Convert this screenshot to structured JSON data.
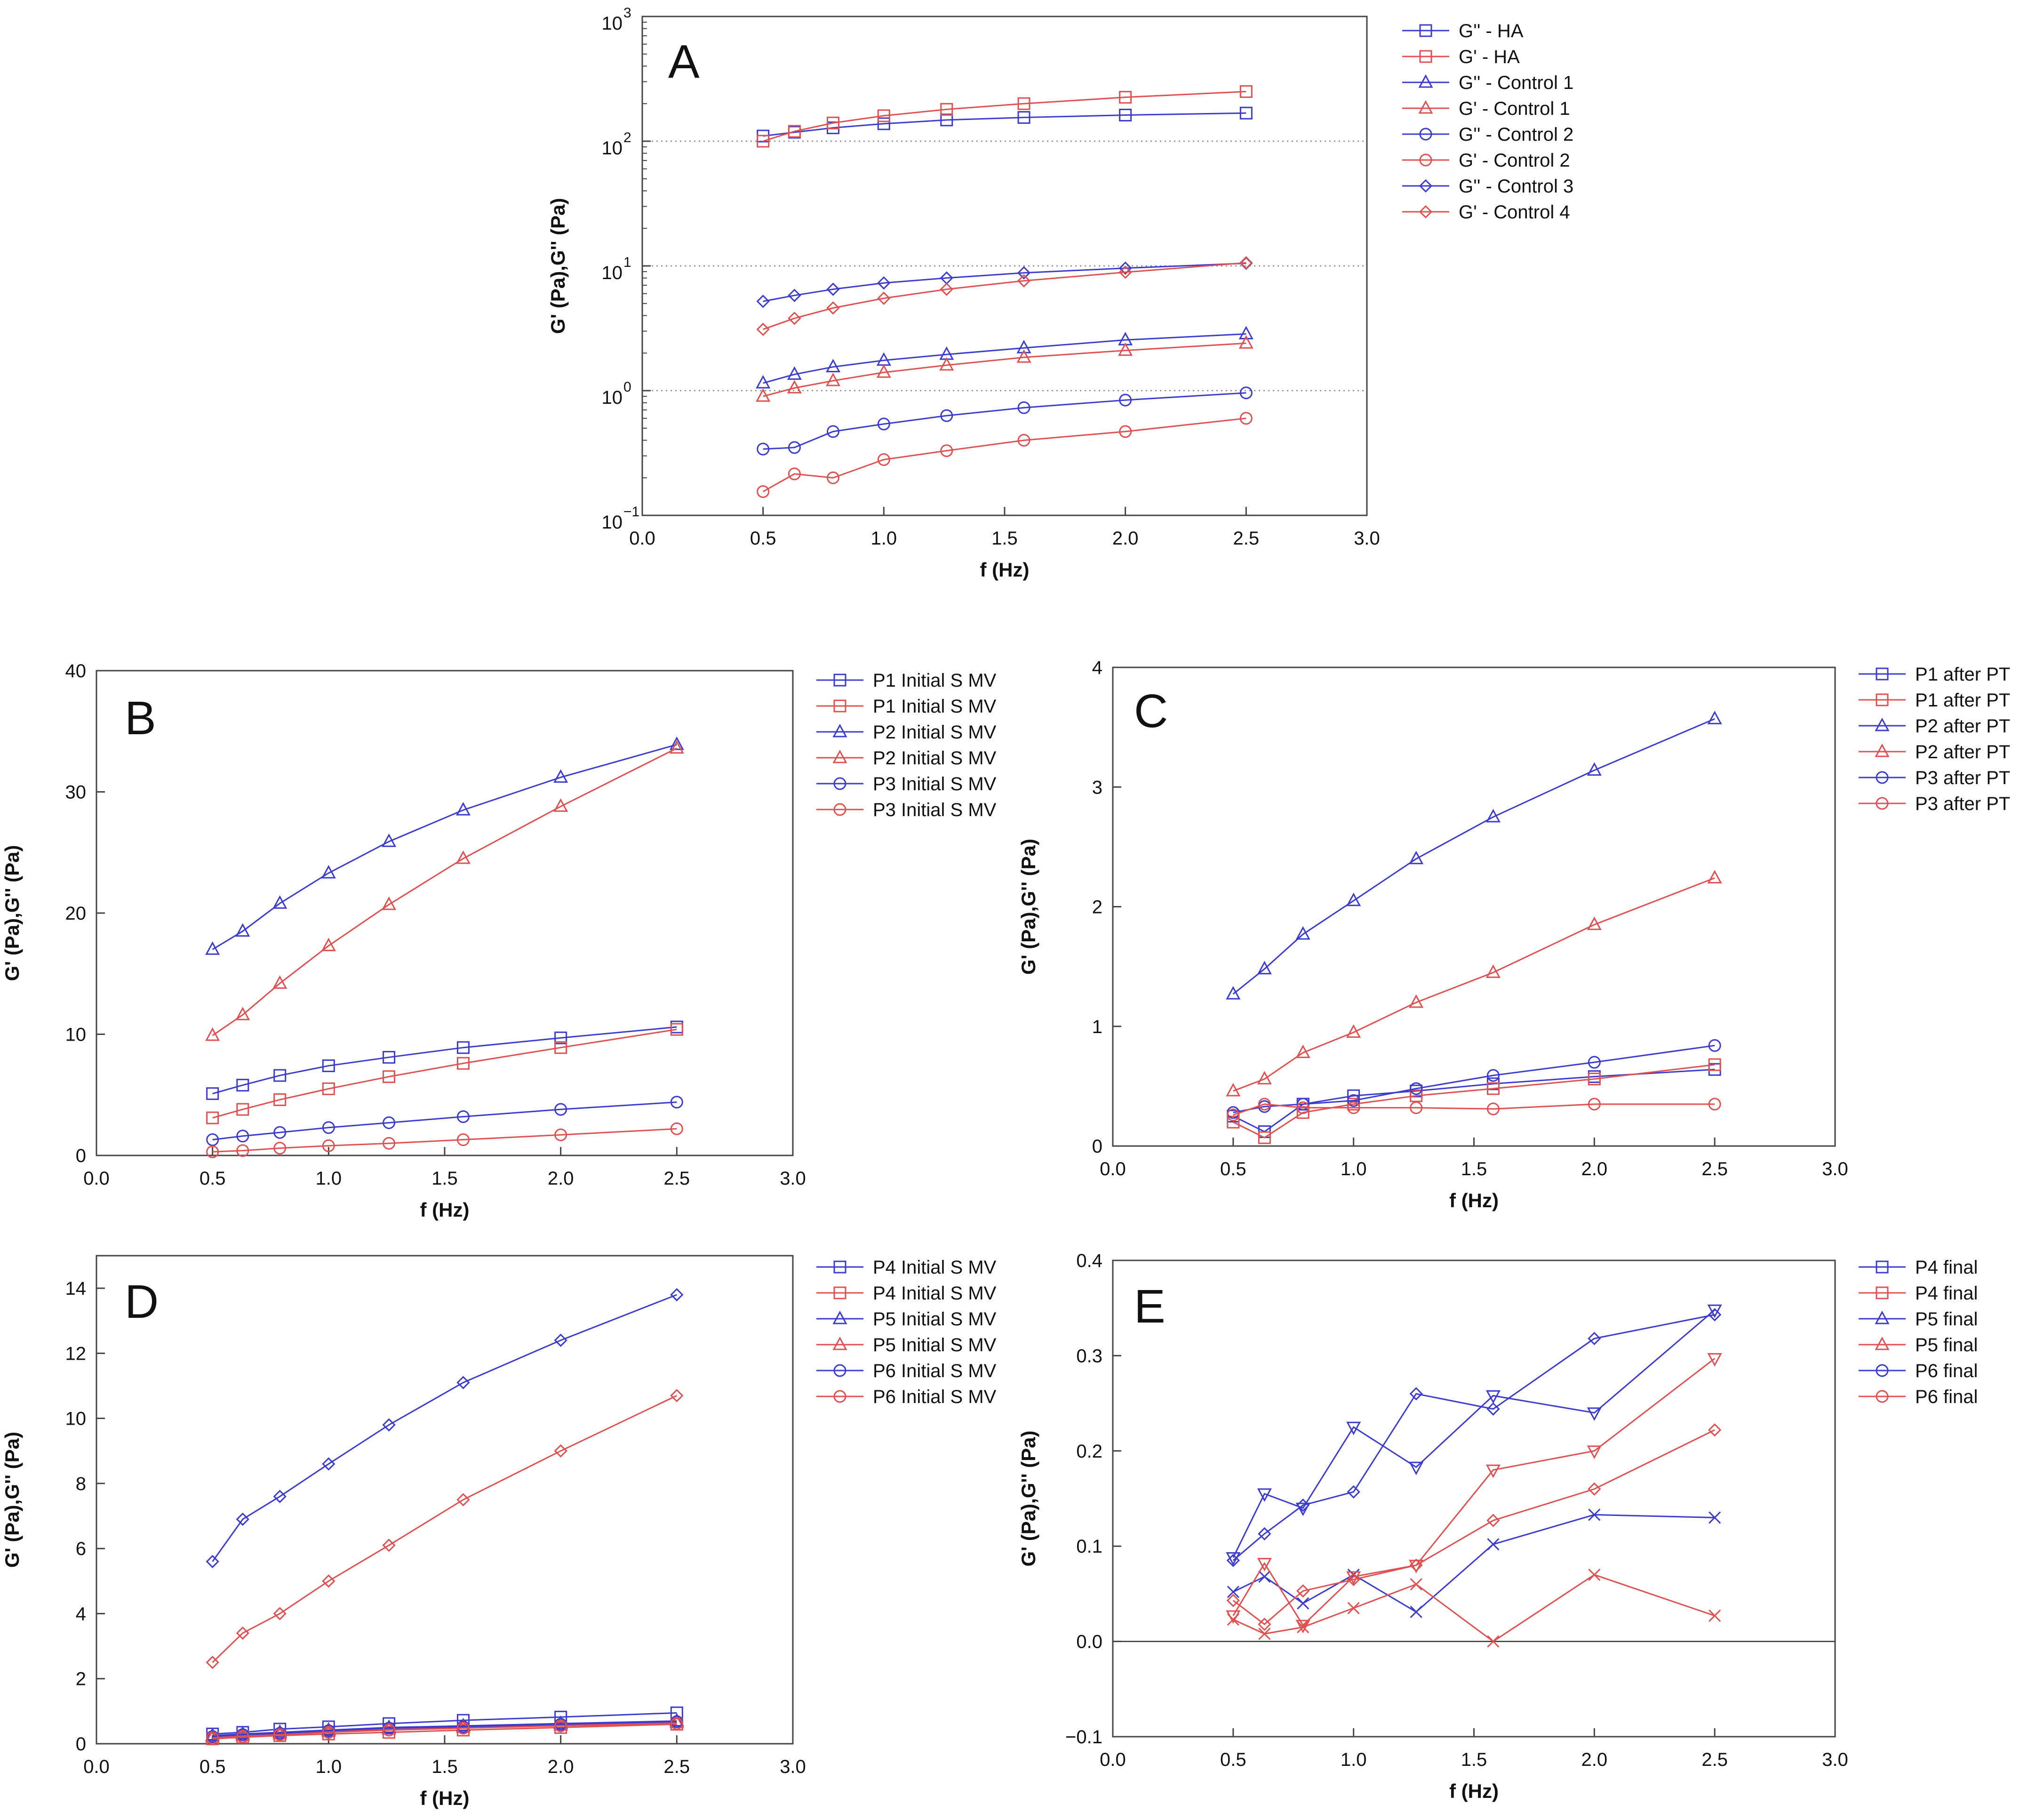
{
  "colors": {
    "blue": "#3b3bd0",
    "red": "#e05050",
    "axis": "#444444",
    "grid": "#888888"
  },
  "chart_data": [
    {
      "id": "A",
      "type": "line",
      "panel_label": "A",
      "xlabel": "f (Hz)",
      "ylabel": "G' (Pa),G'' (Pa)",
      "xlim": [
        0,
        3
      ],
      "ylim": [
        0.1,
        1000
      ],
      "yscale": "log",
      "xticks": [
        "0.0",
        "0.5",
        "1.0",
        "1.5",
        "2.0",
        "2.5",
        "3.0"
      ],
      "yticks": [
        {
          "value": 0.1,
          "base": "10",
          "exp": "−1"
        },
        {
          "value": 1,
          "base": "10",
          "exp": "0"
        },
        {
          "value": 10,
          "base": "10",
          "exp": "1"
        },
        {
          "value": 100,
          "base": "10",
          "exp": "2"
        },
        {
          "value": 1000,
          "base": "10",
          "exp": "3"
        }
      ],
      "grid_y": [
        1,
        10,
        100
      ],
      "legend_position": "right",
      "x": [
        0.5,
        0.63,
        0.79,
        1.0,
        1.26,
        1.58,
        2.0,
        2.5
      ],
      "series": [
        {
          "name": "G'' - HA",
          "color": "blue",
          "marker": "square",
          "values": [
            110,
            118,
            128,
            138,
            148,
            155,
            162,
            168
          ]
        },
        {
          "name": "G'  - HA",
          "color": "red",
          "marker": "square",
          "values": [
            100,
            120,
            140,
            160,
            180,
            200,
            225,
            250
          ]
        },
        {
          "name": "G'' - Control 1",
          "color": "blue",
          "marker": "triangle",
          "values": [
            1.15,
            1.35,
            1.55,
            1.75,
            1.95,
            2.2,
            2.55,
            2.85
          ]
        },
        {
          "name": "G'  - Control 1",
          "color": "red",
          "marker": "triangle",
          "values": [
            0.9,
            1.05,
            1.2,
            1.4,
            1.6,
            1.85,
            2.1,
            2.4
          ]
        },
        {
          "name": "G'' - Control 2",
          "color": "blue",
          "marker": "circle",
          "values": [
            0.34,
            0.35,
            0.47,
            0.54,
            0.63,
            0.73,
            0.84,
            0.96
          ]
        },
        {
          "name": "G'  - Control 2",
          "color": "red",
          "marker": "circle",
          "values": [
            0.155,
            0.215,
            0.2,
            0.28,
            0.33,
            0.4,
            0.47,
            0.6
          ]
        },
        {
          "name": "G'' - Control 3",
          "color": "blue",
          "marker": "diamond",
          "values": [
            5.2,
            5.8,
            6.5,
            7.3,
            8.0,
            8.8,
            9.6,
            10.5
          ]
        },
        {
          "name": "G'  - Control 4",
          "color": "red",
          "marker": "diamond",
          "values": [
            3.1,
            3.8,
            4.6,
            5.5,
            6.5,
            7.6,
            8.9,
            10.6
          ]
        }
      ]
    },
    {
      "id": "B",
      "type": "line",
      "panel_label": "B",
      "xlabel": "f (Hz)",
      "ylabel": "G' (Pa),G'' (Pa)",
      "xlim": [
        0,
        3
      ],
      "ylim": [
        0,
        40
      ],
      "yscale": "linear",
      "xticks": [
        "0.0",
        "0.5",
        "1.0",
        "1.5",
        "2.0",
        "2.5",
        "3.0"
      ],
      "yticks": [
        "0",
        "10",
        "20",
        "30",
        "40"
      ],
      "legend_position": "right",
      "x": [
        0.5,
        0.63,
        0.79,
        1.0,
        1.26,
        1.58,
        2.0,
        2.5
      ],
      "series": [
        {
          "name": "P1 Initial S MV",
          "color": "blue",
          "marker": "square",
          "values": [
            5.1,
            5.8,
            6.6,
            7.4,
            8.1,
            8.9,
            9.7,
            10.6
          ]
        },
        {
          "name": "P1 Initial S MV",
          "color": "red",
          "marker": "square",
          "values": [
            3.1,
            3.8,
            4.6,
            5.5,
            6.5,
            7.6,
            8.9,
            10.4
          ]
        },
        {
          "name": "P2 Initial S MV",
          "color": "blue",
          "marker": "triangle",
          "values": [
            17.0,
            18.5,
            20.8,
            23.3,
            25.9,
            28.5,
            31.2,
            33.9
          ]
        },
        {
          "name": "P2 Initial S MV",
          "color": "red",
          "marker": "triangle",
          "values": [
            9.9,
            11.6,
            14.2,
            17.3,
            20.7,
            24.5,
            28.8,
            33.6
          ]
        },
        {
          "name": "P3 Initial S MV",
          "color": "blue",
          "marker": "circle",
          "values": [
            1.3,
            1.6,
            1.9,
            2.3,
            2.7,
            3.2,
            3.8,
            4.4
          ]
        },
        {
          "name": "P3 Initial S MV",
          "color": "red",
          "marker": "circle",
          "values": [
            0.3,
            0.4,
            0.6,
            0.8,
            1.0,
            1.3,
            1.7,
            2.2
          ]
        }
      ]
    },
    {
      "id": "C",
      "type": "line",
      "panel_label": "C",
      "xlabel": "f (Hz)",
      "ylabel": "G' (Pa),G'' (Pa)",
      "xlim": [
        0,
        3
      ],
      "ylim": [
        0,
        4
      ],
      "yscale": "linear",
      "xticks": [
        "0.0",
        "0.5",
        "1.0",
        "1.5",
        "2.0",
        "2.5",
        "3.0"
      ],
      "yticks": [
        "0",
        "1",
        "2",
        "3",
        "4"
      ],
      "legend_position": "right",
      "x": [
        0.5,
        0.63,
        0.79,
        1.0,
        1.26,
        1.58,
        2.0,
        2.5
      ],
      "series": [
        {
          "name": "P1  after PT",
          "color": "blue",
          "marker": "square",
          "values": [
            0.25,
            0.12,
            0.35,
            0.42,
            0.46,
            0.52,
            0.58,
            0.64
          ]
        },
        {
          "name": "P1  after PT",
          "color": "red",
          "marker": "square",
          "values": [
            0.2,
            0.07,
            0.28,
            0.35,
            0.42,
            0.48,
            0.56,
            0.68
          ]
        },
        {
          "name": "P2  after PT",
          "color": "blue",
          "marker": "triangle",
          "values": [
            1.27,
            1.48,
            1.77,
            2.05,
            2.4,
            2.75,
            3.14,
            3.57
          ]
        },
        {
          "name": "P2  after PT",
          "color": "red",
          "marker": "triangle",
          "values": [
            0.46,
            0.56,
            0.78,
            0.95,
            1.2,
            1.45,
            1.85,
            2.24
          ]
        },
        {
          "name": "P3  after PT",
          "color": "blue",
          "marker": "circle",
          "values": [
            0.28,
            0.33,
            0.35,
            0.38,
            0.48,
            0.59,
            0.7,
            0.84
          ]
        },
        {
          "name": "P3  after PT",
          "color": "red",
          "marker": "circle",
          "values": [
            0.26,
            0.35,
            0.32,
            0.32,
            0.32,
            0.31,
            0.35,
            0.35
          ]
        }
      ]
    },
    {
      "id": "D",
      "type": "line",
      "panel_label": "D",
      "xlabel": "f (Hz)",
      "ylabel": "G' (Pa),G'' (Pa)",
      "xlim": [
        0,
        3
      ],
      "ylim": [
        0,
        15
      ],
      "yscale": "linear",
      "xticks": [
        "0.0",
        "0.5",
        "1.0",
        "1.5",
        "2.0",
        "2.5",
        "3.0"
      ],
      "yticks": [
        "0",
        "2",
        "4",
        "6",
        "8",
        "10",
        "12",
        "14"
      ],
      "yticks_values": [
        0,
        2,
        4,
        6,
        8,
        10,
        12,
        14
      ],
      "legend_position": "right",
      "x": [
        0.5,
        0.63,
        0.79,
        1.0,
        1.26,
        1.58,
        2.0,
        2.5
      ],
      "series": [
        {
          "name": "P4 Initial S MV",
          "color": "blue",
          "marker": "square",
          "values": [
            0.3,
            0.35,
            0.45,
            0.52,
            0.62,
            0.72,
            0.82,
            0.95
          ]
        },
        {
          "name": "P4 Initial S MV",
          "color": "red",
          "marker": "square",
          "values": [
            0.15,
            0.2,
            0.25,
            0.3,
            0.35,
            0.42,
            0.5,
            0.6
          ]
        },
        {
          "name": "P5 Initial S MV",
          "color": "blue",
          "marker": "triangle",
          "values": [
            0.25,
            0.3,
            0.35,
            0.42,
            0.5,
            0.55,
            0.62,
            0.7
          ]
        },
        {
          "name": "P5 Initial S MV",
          "color": "red",
          "marker": "triangle",
          "values": [
            0.2,
            0.25,
            0.3,
            0.38,
            0.45,
            0.5,
            0.57,
            0.65
          ]
        },
        {
          "name": "P6 Initial S MV",
          "color": "blue",
          "marker": "circle",
          "values": [
            0.22,
            0.28,
            0.32,
            0.4,
            0.48,
            0.52,
            0.6,
            0.68
          ]
        },
        {
          "name": "P6 Initial S MV",
          "color": "red",
          "marker": "circle",
          "values": [
            0.18,
            0.22,
            0.28,
            0.35,
            0.42,
            0.48,
            0.55,
            0.62
          ]
        },
        {
          "name": "",
          "legend": false,
          "color": "blue",
          "marker": "diamond",
          "values": [
            5.6,
            6.9,
            7.6,
            8.6,
            9.8,
            11.1,
            12.4,
            13.8
          ]
        },
        {
          "name": "",
          "legend": false,
          "color": "red",
          "marker": "diamond",
          "values": [
            2.5,
            3.4,
            4.0,
            5.0,
            6.1,
            7.5,
            9.0,
            10.7
          ]
        }
      ]
    },
    {
      "id": "E",
      "type": "line",
      "panel_label": "E",
      "xlabel": "f (Hz)",
      "ylabel": "G' (Pa),G'' (Pa)",
      "xlim": [
        0,
        3
      ],
      "ylim": [
        -0.1,
        0.4
      ],
      "yscale": "linear",
      "xticks": [
        "0.0",
        "0.5",
        "1.0",
        "1.5",
        "2.0",
        "2.5",
        "3.0"
      ],
      "yticks": [
        "−0.1",
        "0.0",
        "0.1",
        "0.2",
        "0.3",
        "0.4"
      ],
      "yticks_values": [
        -0.1,
        0,
        0.1,
        0.2,
        0.3,
        0.4
      ],
      "zero_line": true,
      "legend_position": "right",
      "x": [
        0.5,
        0.63,
        0.79,
        1.0,
        1.26,
        1.58,
        2.0,
        2.5
      ],
      "legend_entries": [
        {
          "name": "P4 final",
          "color": "blue",
          "marker": "square"
        },
        {
          "name": "P4 final",
          "color": "red",
          "marker": "square"
        },
        {
          "name": "P5 final",
          "color": "blue",
          "marker": "triangle"
        },
        {
          "name": "P5 final",
          "color": "red",
          "marker": "triangle"
        },
        {
          "name": "P6 final",
          "color": "blue",
          "marker": "circle"
        },
        {
          "name": "P6 final",
          "color": "red",
          "marker": "circle"
        }
      ],
      "series": [
        {
          "name": "",
          "legend": false,
          "color": "blue",
          "marker": "tri-down",
          "values": [
            0.088,
            0.155,
            0.14,
            0.225,
            0.183,
            0.258,
            0.24,
            0.348
          ]
        },
        {
          "name": "",
          "legend": false,
          "color": "blue",
          "marker": "diamond",
          "values": [
            0.085,
            0.113,
            0.143,
            0.157,
            0.26,
            0.244,
            0.318,
            0.343
          ]
        },
        {
          "name": "",
          "legend": false,
          "color": "blue",
          "marker": "x",
          "values": [
            0.052,
            0.068,
            0.04,
            0.07,
            0.031,
            0.102,
            0.133,
            0.13
          ]
        },
        {
          "name": "",
          "legend": false,
          "color": "red",
          "marker": "tri-down",
          "values": [
            0.027,
            0.082,
            0.017,
            0.068,
            0.08,
            0.18,
            0.2,
            0.297
          ]
        },
        {
          "name": "",
          "legend": false,
          "color": "red",
          "marker": "diamond",
          "values": [
            0.043,
            0.018,
            0.053,
            0.065,
            0.08,
            0.127,
            0.16,
            0.222
          ]
        },
        {
          "name": "",
          "legend": false,
          "color": "red",
          "marker": "x",
          "values": [
            0.023,
            0.008,
            0.015,
            0.035,
            0.06,
            0.0,
            0.07,
            0.027
          ]
        }
      ]
    }
  ]
}
